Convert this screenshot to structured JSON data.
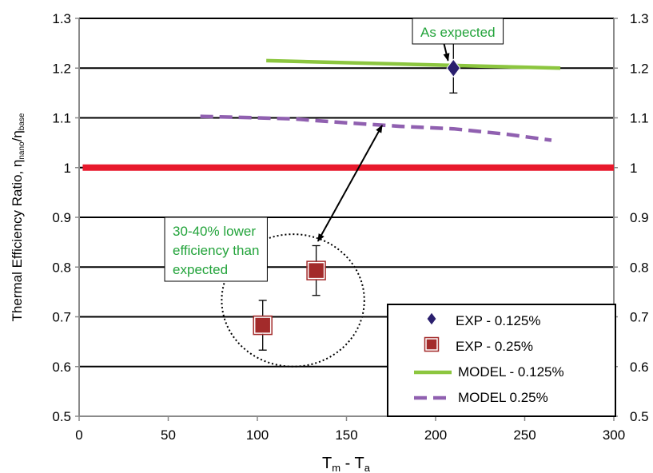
{
  "chart_data": {
    "type": "scatter",
    "title": "",
    "xlabel": {
      "main": "T",
      "sub1": "m",
      "mid": " - T",
      "sub2": "a"
    },
    "ylabel": {
      "main": "Thermal Efficiency Ratio, η",
      "sub1": "nano",
      "mid": "/η",
      "sub2": "base"
    },
    "xlim": [
      0,
      300
    ],
    "ylim": [
      0.5,
      1.3
    ],
    "x_ticks": [
      "0",
      "50",
      "100",
      "150",
      "200",
      "250",
      "300"
    ],
    "y_ticks": [
      "0.5",
      "0.6",
      "0.7",
      "0.8",
      "0.9",
      "1",
      "1.1",
      "1.2",
      "1.3"
    ],
    "y_ticks_right": [
      "0.5",
      "0.6",
      "0.7",
      "0.8",
      "0.9",
      "1",
      "1.1",
      "1.2",
      "1.3"
    ],
    "grid": "horizontal",
    "legend_position": "bottom-right",
    "series": [
      {
        "name": "EXP - 0.125%",
        "type": "scatter",
        "marker": "diamond",
        "color": "#2a1f6e",
        "points": [
          {
            "x": 210,
            "y": 1.2,
            "err_low": 1.15,
            "err_high": 1.25
          }
        ]
      },
      {
        "name": "EXP - 0.25%",
        "type": "scatter",
        "marker": "square",
        "color": "#a32b2b",
        "points": [
          {
            "x": 103,
            "y": 0.683,
            "err_low": 0.633,
            "err_high": 0.733
          },
          {
            "x": 133,
            "y": 0.793,
            "err_low": 0.743,
            "err_high": 0.843
          }
        ]
      },
      {
        "name": "MODEL - 0.125%",
        "type": "line",
        "style": "solid",
        "color": "#8cc63f",
        "points": [
          {
            "x": 105,
            "y": 1.215
          },
          {
            "x": 270,
            "y": 1.2
          }
        ]
      },
      {
        "name": "MODEL 0.25%",
        "type": "line",
        "style": "dashed",
        "color": "#9060b0",
        "points": [
          {
            "x": 68,
            "y": 1.103
          },
          {
            "x": 90,
            "y": 1.101
          },
          {
            "x": 120,
            "y": 1.098
          },
          {
            "x": 150,
            "y": 1.09
          },
          {
            "x": 180,
            "y": 1.083
          },
          {
            "x": 210,
            "y": 1.078
          },
          {
            "x": 240,
            "y": 1.067
          },
          {
            "x": 265,
            "y": 1.055
          }
        ]
      }
    ],
    "reference_line": {
      "y": 1.0,
      "x_from": 2,
      "x_to": 300,
      "color": "#e8192c"
    },
    "annotations": [
      {
        "id": "as-expected",
        "text_lines": [
          "As expected"
        ],
        "box_anchor": {
          "x": 187,
          "y": 1.3
        },
        "arrow": {
          "from": {
            "x": 202,
            "y": 1.289
          },
          "to": {
            "x": 207,
            "y": 1.215
          },
          "heads": "end"
        }
      },
      {
        "id": "lower-efficiency",
        "text_lines": [
          "30-40% lower",
          "efficiency than",
          "expected"
        ],
        "box_anchor": {
          "x": 48,
          "y": 0.9
        },
        "arrow": {
          "from": {
            "x": 134,
            "y": 0.852
          },
          "to": {
            "x": 170,
            "y": 1.085
          },
          "heads": "both"
        },
        "ellipse": {
          "cx": 120,
          "cy": 0.733,
          "rx": 40,
          "ry": 0.133
        }
      }
    ]
  }
}
